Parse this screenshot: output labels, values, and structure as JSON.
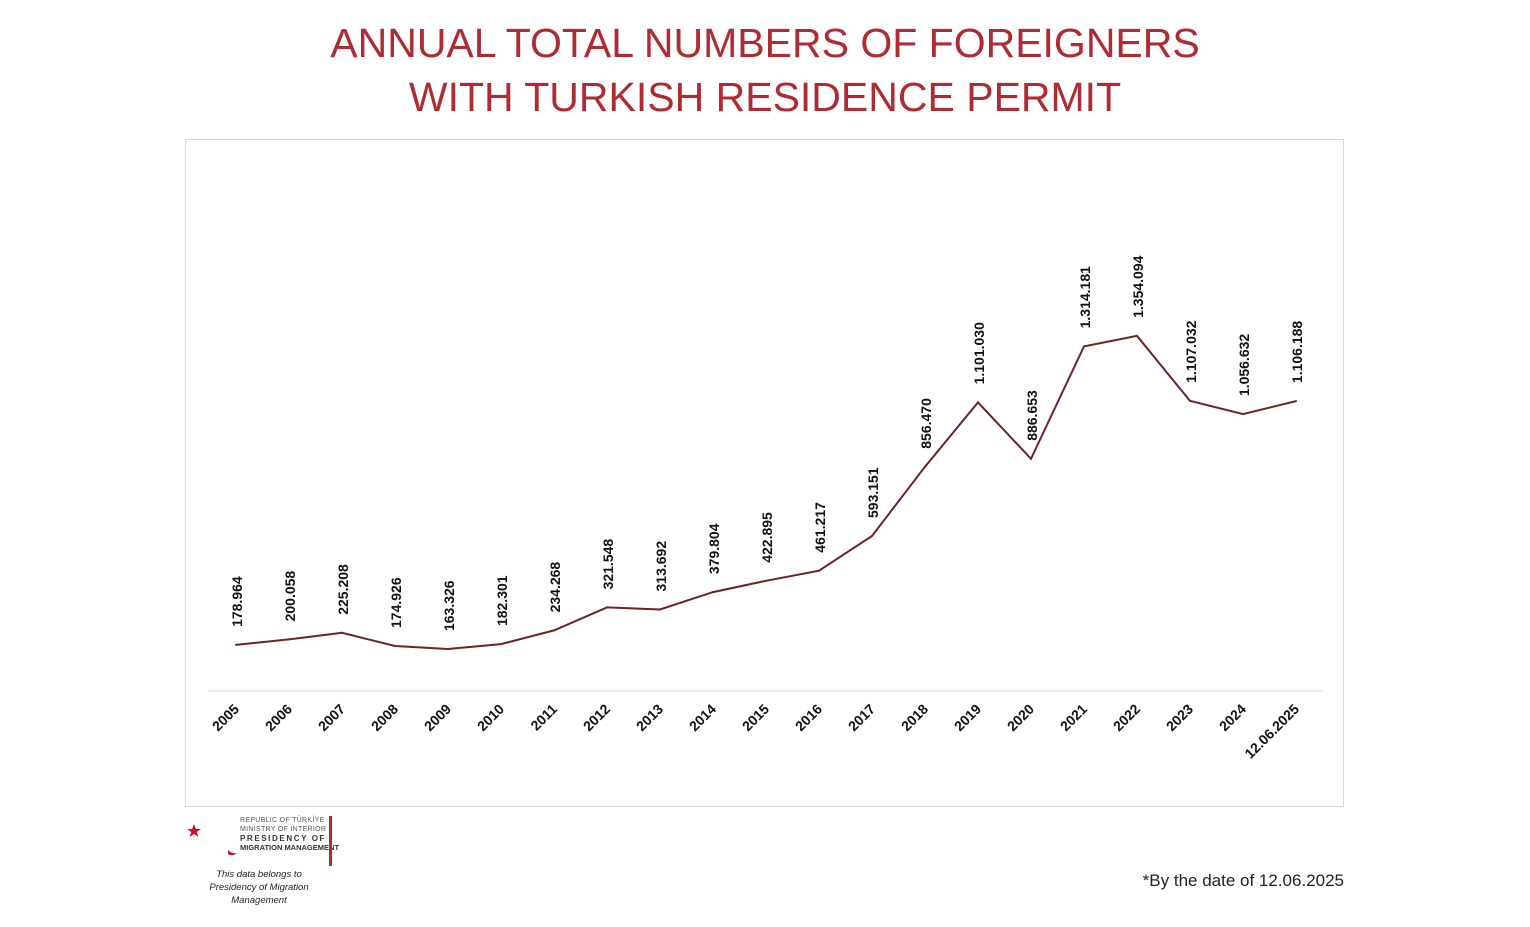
{
  "title": {
    "line1": "ANNUAL TOTAL NUMBERS OF FOREIGNERS",
    "line2": "WITH TURKISH RESIDENCE PERMIT"
  },
  "footnote": "*By the date of 12.06.2025",
  "logo": {
    "line1": "REPUBLIC OF TÜRKİYE",
    "line2": "MINISTRY OF INTERIOR",
    "line3": "PRESIDENCY OF",
    "line4": "MIGRATION MANAGEMENT",
    "credit1": "This data belongs to",
    "credit2": "Presidency of Migration Management"
  },
  "colors": {
    "title": "#b02a31",
    "line": "#6b2323",
    "accent": "#c8102e"
  },
  "chart_data": {
    "type": "line",
    "title": "ANNUAL TOTAL NUMBERS OF FOREIGNERS WITH TURKISH RESIDENCE PERMIT",
    "categories": [
      "2005",
      "2006",
      "2007",
      "2008",
      "2009",
      "2010",
      "2011",
      "2012",
      "2013",
      "2014",
      "2015",
      "2016",
      "2017",
      "2018",
      "2019",
      "2020",
      "2021",
      "2022",
      "2023",
      "2024",
      "12.06.2025"
    ],
    "values": [
      178964,
      200058,
      225208,
      174926,
      163326,
      182301,
      234268,
      321548,
      313692,
      379804,
      422895,
      461217,
      593151,
      856470,
      1101030,
      886653,
      1314181,
      1354094,
      1107032,
      1056632,
      1106188
    ],
    "value_labels": [
      "178.964",
      "200.058",
      "225.208",
      "174.926",
      "163.326",
      "182.301",
      "234.268",
      "321.548",
      "313.692",
      "379.804",
      "422.895",
      "461.217",
      "593.151",
      "856.470",
      "1.101.030",
      "886.653",
      "1.314.181",
      "1.354.094",
      "1.107.032",
      "1.056.632",
      "1.106.188"
    ],
    "ylim": [
      0,
      1600000
    ],
    "grid": false,
    "legend": "none",
    "xlabel": "",
    "ylabel": ""
  }
}
